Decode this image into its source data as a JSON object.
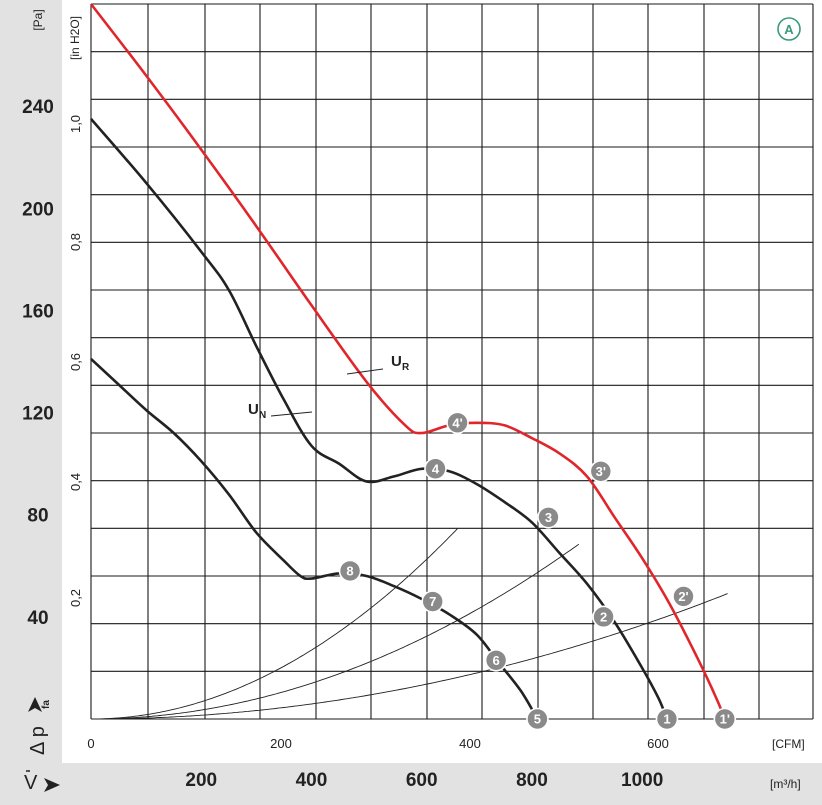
{
  "chart_data": {
    "type": "line",
    "badge": "A",
    "y_units": {
      "left": "[Pa]",
      "inner": "[in H2O]"
    },
    "x_units": {
      "bottom": "[m³/h]",
      "inner": "[CFM]"
    },
    "y_label": {
      "symbol": "Δ p",
      "subscript": "fa"
    },
    "x_label": {
      "symbol": "V"
    },
    "y_ticks_pa": [
      "40",
      "80",
      "120",
      "160",
      "200",
      "240"
    ],
    "y_ticks_inh2o": [
      "0,2",
      "0,4",
      "0,6",
      "0,8",
      "1,0"
    ],
    "x_ticks_cfm": [
      "0",
      "200",
      "400",
      "600"
    ],
    "x_ticks_m3h": [
      "200",
      "400",
      "600",
      "800",
      "1000"
    ],
    "x_range_m3h": [
      0,
      1310
    ],
    "y_range_pa": [
      0,
      280
    ],
    "grid": true,
    "series": [
      {
        "name": "U_R",
        "label_main": "U",
        "label_sub": "R",
        "color": "#e0262b",
        "points": [
          [
            0,
            280
          ],
          [
            100,
            252
          ],
          [
            200,
            223
          ],
          [
            300,
            193
          ],
          [
            400,
            162
          ],
          [
            500,
            132
          ],
          [
            570,
            115
          ],
          [
            600,
            112
          ],
          [
            650,
            115
          ],
          [
            700,
            116
          ],
          [
            750,
            115
          ],
          [
            800,
            110
          ],
          [
            850,
            104
          ],
          [
            900,
            95
          ],
          [
            950,
            79
          ],
          [
            1000,
            63
          ],
          [
            1050,
            45
          ],
          [
            1100,
            24
          ],
          [
            1135,
            8
          ],
          [
            1150,
            0
          ]
        ]
      },
      {
        "name": "U_N",
        "label_main": "U",
        "label_sub": "N",
        "color": "#222222",
        "points": [
          [
            0,
            235
          ],
          [
            100,
            210
          ],
          [
            200,
            183
          ],
          [
            250,
            168
          ],
          [
            300,
            146
          ],
          [
            350,
            125
          ],
          [
            400,
            107
          ],
          [
            450,
            100
          ],
          [
            500,
            93
          ],
          [
            550,
            95
          ],
          [
            600,
            98
          ],
          [
            650,
            97
          ],
          [
            700,
            92
          ],
          [
            750,
            85
          ],
          [
            800,
            77
          ],
          [
            850,
            65
          ],
          [
            900,
            53
          ],
          [
            950,
            38
          ],
          [
            1000,
            20
          ],
          [
            1030,
            8
          ],
          [
            1045,
            0
          ]
        ]
      },
      {
        "name": "low",
        "color": "#222222",
        "points": [
          [
            0,
            141
          ],
          [
            50,
            131
          ],
          [
            100,
            121
          ],
          [
            150,
            112
          ],
          [
            200,
            101
          ],
          [
            250,
            88
          ],
          [
            300,
            73
          ],
          [
            350,
            62
          ],
          [
            380,
            56
          ],
          [
            400,
            55
          ],
          [
            450,
            57
          ],
          [
            500,
            56
          ],
          [
            550,
            52
          ],
          [
            600,
            47
          ],
          [
            650,
            41
          ],
          [
            700,
            33
          ],
          [
            740,
            22
          ],
          [
            780,
            11
          ],
          [
            810,
            0
          ]
        ]
      }
    ],
    "system_curves": [
      {
        "k": 0.0001686,
        "xmax": 665
      },
      {
        "k": 8.74e-05,
        "xmax": 888
      },
      {
        "k": 3.68e-05,
        "xmax": 1158
      }
    ],
    "markers": [
      {
        "label": "1",
        "x": 1045,
        "y": 0
      },
      {
        "label": "2",
        "x": 930,
        "y": 40
      },
      {
        "label": "3",
        "x": 830,
        "y": 79
      },
      {
        "label": "4",
        "x": 625,
        "y": 98
      },
      {
        "label": "5",
        "x": 810,
        "y": 0
      },
      {
        "label": "6",
        "x": 735,
        "y": 23
      },
      {
        "label": "7",
        "x": 620,
        "y": 46
      },
      {
        "label": "8",
        "x": 470,
        "y": 58
      },
      {
        "label": "1'",
        "x": 1150,
        "y": 0
      },
      {
        "label": "2'",
        "x": 1075,
        "y": 48
      },
      {
        "label": "3'",
        "x": 925,
        "y": 97
      },
      {
        "label": "4'",
        "x": 665,
        "y": 116
      }
    ]
  }
}
